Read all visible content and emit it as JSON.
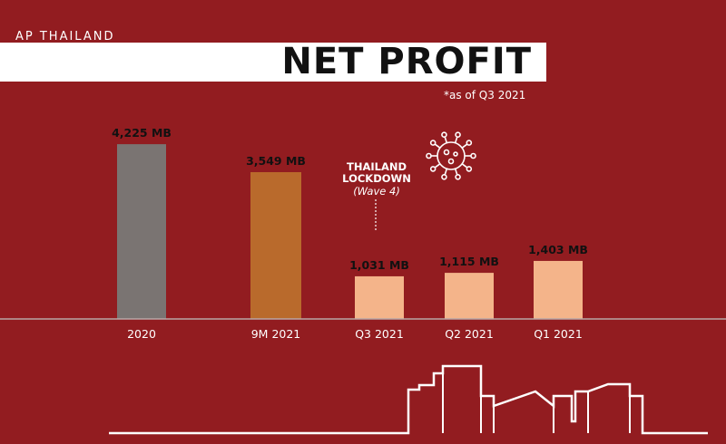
{
  "brand": "AP THAILAND",
  "title": "NET PROFIT",
  "note": "*as of Q3 2021",
  "annotation": {
    "line1": "THAILAND",
    "line2": "LOCKDOWN",
    "line3": "(Wave 4)",
    "icon": "virus-icon"
  },
  "colors": {
    "background": "#921c20",
    "gray": "#7a7472",
    "orange": "#b96a2c",
    "peach": "#f4b48a",
    "white": "#ffffff"
  },
  "chart_data": {
    "type": "bar",
    "categories": [
      "2020",
      "9M 2021",
      "Q3 2021",
      "Q2 2021",
      "Q1 2021"
    ],
    "values": [
      4225,
      3549,
      1031,
      1115,
      1403
    ],
    "labels": [
      "4,225 MB",
      "3,549 MB",
      "1,031 MB",
      "1,115 MB",
      "1,403 MB"
    ],
    "colors": [
      "#7a7472",
      "#b96a2c",
      "#f4b48a",
      "#f4b48a",
      "#f4b48a"
    ],
    "unit": "MB",
    "ylim": [
      0,
      4600
    ],
    "grid": false,
    "legend": "none"
  }
}
